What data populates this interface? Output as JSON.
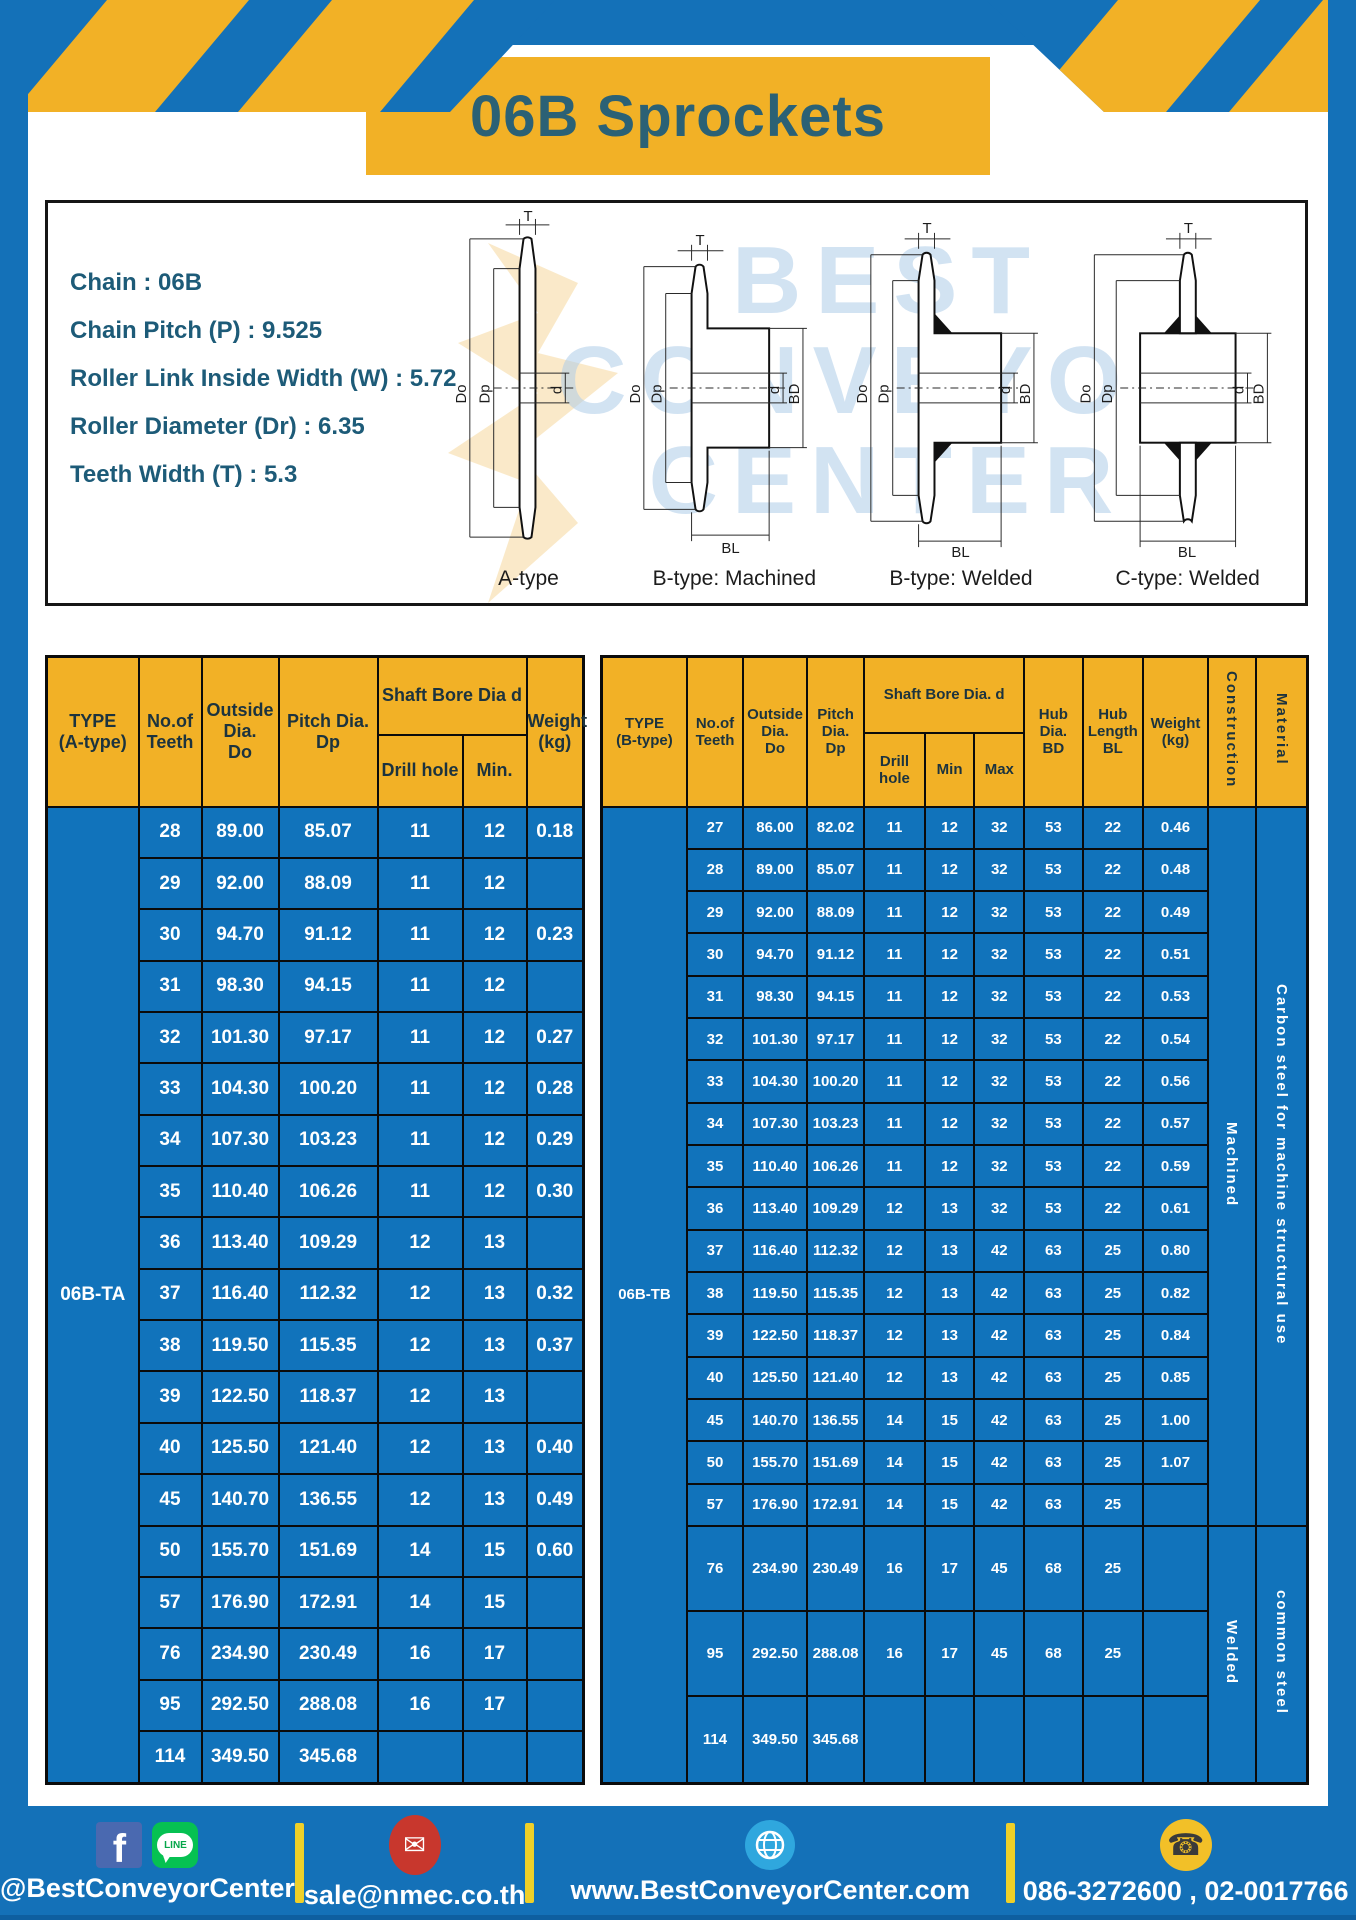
{
  "page": {
    "title": "06B Sprockets"
  },
  "colors": {
    "frame_blue": "#1471B8",
    "cell_blue": "#1173BB",
    "header_yellow": "#F2B126",
    "separator_yellow": "#EFD029",
    "title_text": "#2B6175",
    "watermark_blue": "#AFCDE9"
  },
  "specs": {
    "lines": [
      "Chain : 06B",
      "Chain Pitch (P) : 9.525",
      "Roller Link Inside Width (W) : 5.72",
      "Roller Diameter (Dr) : 6.35",
      "Teeth Width (T) : 5.3"
    ]
  },
  "watermark": {
    "line1": "BEST",
    "line2": "CONVEYOR",
    "line3": "CENTER"
  },
  "diagrams": {
    "dims": {
      "T": "T",
      "Do": "Do",
      "Dp": "Dp",
      "d": "d",
      "BD": "BD",
      "BL": "BL"
    },
    "captions": {
      "a": "A-type",
      "b_machined": "B-type: Machined",
      "b_welded": "B-type: Welded",
      "c_welded": "C-type: Welded"
    }
  },
  "table_a": {
    "headers": {
      "type": "TYPE\n(A-type)",
      "teeth": "No.of\nTeeth",
      "outside": "Outside\nDia.\nDo",
      "pitch": "Pitch Dia.\nDp",
      "shaft_bore": "Shaft Bore Dia d",
      "drill": "Drill hole",
      "min": "Min.",
      "weight": "Weight\n(kg)"
    },
    "type_value": "06B-TA",
    "rows": [
      [
        "28",
        "89.00",
        "85.07",
        "11",
        "12",
        "0.18"
      ],
      [
        "29",
        "92.00",
        "88.09",
        "11",
        "12",
        ""
      ],
      [
        "30",
        "94.70",
        "91.12",
        "11",
        "12",
        "0.23"
      ],
      [
        "31",
        "98.30",
        "94.15",
        "11",
        "12",
        ""
      ],
      [
        "32",
        "101.30",
        "97.17",
        "11",
        "12",
        "0.27"
      ],
      [
        "33",
        "104.30",
        "100.20",
        "11",
        "12",
        "0.28"
      ],
      [
        "34",
        "107.30",
        "103.23",
        "11",
        "12",
        "0.29"
      ],
      [
        "35",
        "110.40",
        "106.26",
        "11",
        "12",
        "0.30"
      ],
      [
        "36",
        "113.40",
        "109.29",
        "12",
        "13",
        ""
      ],
      [
        "37",
        "116.40",
        "112.32",
        "12",
        "13",
        "0.32"
      ],
      [
        "38",
        "119.50",
        "115.35",
        "12",
        "13",
        "0.37"
      ],
      [
        "39",
        "122.50",
        "118.37",
        "12",
        "13",
        ""
      ],
      [
        "40",
        "125.50",
        "121.40",
        "12",
        "13",
        "0.40"
      ],
      [
        "45",
        "140.70",
        "136.55",
        "12",
        "13",
        "0.49"
      ],
      [
        "50",
        "155.70",
        "151.69",
        "14",
        "15",
        "0.60"
      ],
      [
        "57",
        "176.90",
        "172.91",
        "14",
        "15",
        ""
      ],
      [
        "76",
        "234.90",
        "230.49",
        "16",
        "17",
        ""
      ],
      [
        "95",
        "292.50",
        "288.08",
        "16",
        "17",
        ""
      ],
      [
        "114",
        "349.50",
        "345.68",
        "",
        "",
        ""
      ]
    ]
  },
  "table_b": {
    "headers": {
      "type": "TYPE\n(B-type)",
      "teeth": "No.of\nTeeth",
      "outside": "Outside\nDia.\nDo",
      "pitch": "Pitch\nDia.\nDp",
      "shaft_bore": "Shaft Bore Dia. d",
      "drill": "Drill hole",
      "min": "Min",
      "max": "Max",
      "hub_dia": "Hub\nDia.\nBD",
      "hub_len": "Hub\nLength\nBL",
      "weight": "Weight\n(kg)",
      "construction": "Construction",
      "material": "Material"
    },
    "type_value": "06B-TB",
    "rows": [
      [
        "27",
        "86.00",
        "82.02",
        "11",
        "12",
        "32",
        "53",
        "22",
        "0.46"
      ],
      [
        "28",
        "89.00",
        "85.07",
        "11",
        "12",
        "32",
        "53",
        "22",
        "0.48"
      ],
      [
        "29",
        "92.00",
        "88.09",
        "11",
        "12",
        "32",
        "53",
        "22",
        "0.49"
      ],
      [
        "30",
        "94.70",
        "91.12",
        "11",
        "12",
        "32",
        "53",
        "22",
        "0.51"
      ],
      [
        "31",
        "98.30",
        "94.15",
        "11",
        "12",
        "32",
        "53",
        "22",
        "0.53"
      ],
      [
        "32",
        "101.30",
        "97.17",
        "11",
        "12",
        "32",
        "53",
        "22",
        "0.54"
      ],
      [
        "33",
        "104.30",
        "100.20",
        "11",
        "12",
        "32",
        "53",
        "22",
        "0.56"
      ],
      [
        "34",
        "107.30",
        "103.23",
        "11",
        "12",
        "32",
        "53",
        "22",
        "0.57"
      ],
      [
        "35",
        "110.40",
        "106.26",
        "11",
        "12",
        "32",
        "53",
        "22",
        "0.59"
      ],
      [
        "36",
        "113.40",
        "109.29",
        "12",
        "13",
        "32",
        "53",
        "22",
        "0.61"
      ],
      [
        "37",
        "116.40",
        "112.32",
        "12",
        "13",
        "42",
        "63",
        "25",
        "0.80"
      ],
      [
        "38",
        "119.50",
        "115.35",
        "12",
        "13",
        "42",
        "63",
        "25",
        "0.82"
      ],
      [
        "39",
        "122.50",
        "118.37",
        "12",
        "13",
        "42",
        "63",
        "25",
        "0.84"
      ],
      [
        "40",
        "125.50",
        "121.40",
        "12",
        "13",
        "42",
        "63",
        "25",
        "0.85"
      ],
      [
        "45",
        "140.70",
        "136.55",
        "14",
        "15",
        "42",
        "63",
        "25",
        "1.00"
      ],
      [
        "50",
        "155.70",
        "151.69",
        "14",
        "15",
        "42",
        "63",
        "25",
        "1.07"
      ],
      [
        "57",
        "176.90",
        "172.91",
        "14",
        "15",
        "42",
        "63",
        "25",
        ""
      ],
      [
        "76",
        "234.90",
        "230.49",
        "16",
        "17",
        "45",
        "68",
        "25",
        ""
      ],
      [
        "95",
        "292.50",
        "288.08",
        "16",
        "17",
        "45",
        "68",
        "25",
        ""
      ],
      [
        "114",
        "349.50",
        "345.68",
        "",
        "",
        "",
        "",
        "",
        ""
      ]
    ],
    "construction_spans": [
      {
        "label": "Machined",
        "rows": 17
      },
      {
        "label": "Welded",
        "rows": 3
      }
    ],
    "material_spans": [
      {
        "label": "Carbon steel for machine structural use",
        "rows": 17
      },
      {
        "label": "common steel",
        "rows": 3
      }
    ]
  },
  "footer": {
    "facebook_glyph": "f",
    "line_label": "LINE",
    "social": "@BestConveyorCenter",
    "email": "sale@nmec.co.th",
    "website": "www.BestConveyorCenter.com",
    "phone": "086-3272600 , 02-0017766"
  }
}
